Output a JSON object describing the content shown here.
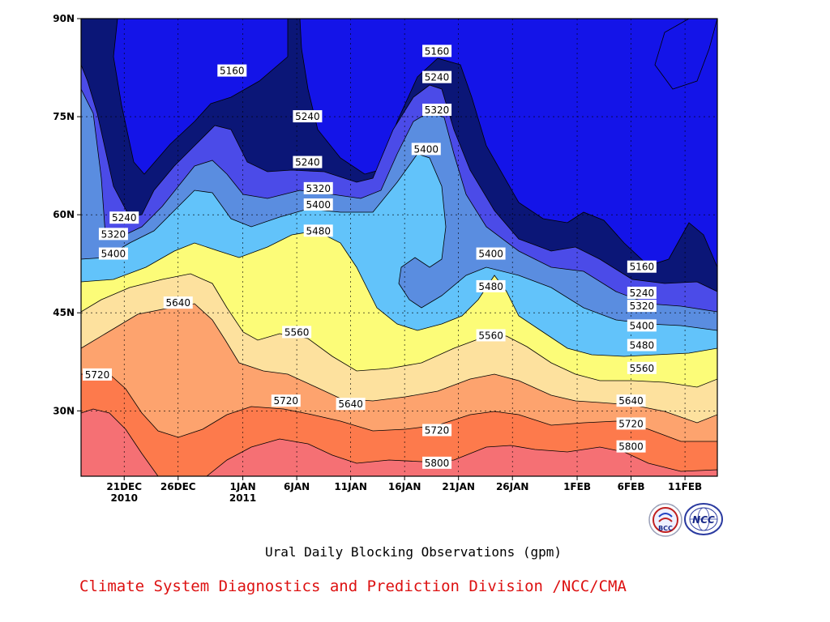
{
  "chart_data": {
    "type": "contour",
    "title": "Ural Daily Blocking Observations (gpm)",
    "footer": "Climate System Diagnostics and Prediction Division /NCC/CMA",
    "logos": [
      "BCC",
      "NCC"
    ],
    "x_axis": {
      "ticks": [
        {
          "label": "21DEC",
          "sub": "2010",
          "date": "2010-12-21"
        },
        {
          "label": "26DEC",
          "sub": "",
          "date": "2010-12-26"
        },
        {
          "label": "1JAN",
          "sub": "2011",
          "date": "2011-01-01"
        },
        {
          "label": "6JAN",
          "sub": "",
          "date": "2011-01-06"
        },
        {
          "label": "11JAN",
          "sub": "",
          "date": "2011-01-11"
        },
        {
          "label": "16JAN",
          "sub": "",
          "date": "2011-01-16"
        },
        {
          "label": "21JAN",
          "sub": "",
          "date": "2011-01-21"
        },
        {
          "label": "26JAN",
          "sub": "",
          "date": "2011-01-26"
        },
        {
          "label": "1FEB",
          "sub": "",
          "date": "2011-02-01"
        },
        {
          "label": "6FEB",
          "sub": "",
          "date": "2011-02-06"
        },
        {
          "label": "11FEB",
          "sub": "",
          "date": "2011-02-11"
        }
      ],
      "range": [
        "2010-12-17",
        "2011-02-14"
      ]
    },
    "y_axis": {
      "ticks": [
        {
          "label": "30N",
          "value": 30
        },
        {
          "label": "45N",
          "value": 45
        },
        {
          "label": "60N",
          "value": 60
        },
        {
          "label": "75N",
          "value": 75
        },
        {
          "label": "90N",
          "value": 90
        }
      ],
      "range": [
        20,
        90
      ]
    },
    "grid": true,
    "contour_levels": [
      5160,
      5240,
      5320,
      5400,
      5480,
      5560,
      5640,
      5720,
      5800
    ],
    "fill_colors": {
      "below_5160": "#0b1677",
      "5160_5240": "#1414e8",
      "5240_5320": "#4b4be8",
      "5320_5400": "#5a8de0",
      "5400_5480": "#62c3fa",
      "5480_5560": "#fcfc78",
      "5560_5640": "#fde19e",
      "5640_5720": "#fda36e",
      "5720_5800": "#fd7a4c",
      "above_5800": "#f57074"
    },
    "contour_labels": [
      {
        "text": "5160",
        "date": "2010-12-31",
        "lat": 82
      },
      {
        "text": "5160",
        "date": "2011-01-19",
        "lat": 85
      },
      {
        "text": "5160",
        "date": "2011-02-07",
        "lat": 52
      },
      {
        "text": "5240",
        "date": "2010-12-21",
        "lat": 59.5
      },
      {
        "text": "5240",
        "date": "2011-01-07",
        "lat": 75
      },
      {
        "text": "5240",
        "date": "2011-01-07",
        "lat": 68
      },
      {
        "text": "5240",
        "date": "2011-01-19",
        "lat": 81
      },
      {
        "text": "5240",
        "date": "2011-02-07",
        "lat": 48
      },
      {
        "text": "5320",
        "date": "2010-12-20",
        "lat": 57
      },
      {
        "text": "5320",
        "date": "2011-01-08",
        "lat": 64
      },
      {
        "text": "5320",
        "date": "2011-01-19",
        "lat": 76
      },
      {
        "text": "5320",
        "date": "2011-02-07",
        "lat": 46
      },
      {
        "text": "5400",
        "date": "2010-12-20",
        "lat": 54
      },
      {
        "text": "5400",
        "date": "2011-01-08",
        "lat": 61.5
      },
      {
        "text": "5400",
        "date": "2011-01-18",
        "lat": 70
      },
      {
        "text": "5400",
        "date": "2011-01-24",
        "lat": 54
      },
      {
        "text": "5400",
        "date": "2011-02-07",
        "lat": 43
      },
      {
        "text": "5480",
        "date": "2011-01-08",
        "lat": 57.5
      },
      {
        "text": "5480",
        "date": "2011-01-24",
        "lat": 49
      },
      {
        "text": "5480",
        "date": "2011-02-07",
        "lat": 40
      },
      {
        "text": "5560",
        "date": "2011-01-06",
        "lat": 42
      },
      {
        "text": "5560",
        "date": "2011-01-24",
        "lat": 41.5
      },
      {
        "text": "5560",
        "date": "2011-02-07",
        "lat": 36.5
      },
      {
        "text": "5640",
        "date": "2010-12-26",
        "lat": 46.5
      },
      {
        "text": "5640",
        "date": "2011-01-11",
        "lat": 31
      },
      {
        "text": "5640",
        "date": "2011-02-06",
        "lat": 31.5
      },
      {
        "text": "5720",
        "date": "2010-12-17",
        "lat": 35.5
      },
      {
        "text": "5720",
        "date": "2011-01-05",
        "lat": 31.5
      },
      {
        "text": "5720",
        "date": "2011-01-19",
        "lat": 27
      },
      {
        "text": "5720",
        "date": "2011-02-06",
        "lat": 28
      },
      {
        "text": "5800",
        "date": "2011-01-19",
        "lat": 22
      },
      {
        "text": "5800",
        "date": "2011-02-06",
        "lat": 24.5
      }
    ]
  }
}
